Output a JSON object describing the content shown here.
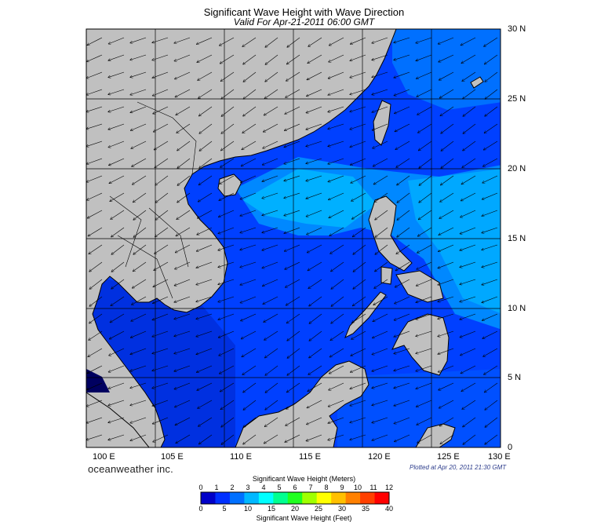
{
  "title": "Significant Wave Height with Wave Direction",
  "subtitle": "Valid For Apr-21-2011 06:00 GMT",
  "lat_labels": [
    "30 N",
    "25 N",
    "20 N",
    "15 N",
    "10 N",
    "5 N",
    "0"
  ],
  "lon_labels": [
    "100 E",
    "105 E",
    "110 E",
    "115 E",
    "120 E",
    "125 E",
    "130 E"
  ],
  "brand": "oceanweather inc.",
  "plotted": "Plotted at Apr 20, 2011 21:30 GMT",
  "colorbar": {
    "meters_title": "Significant Wave Height (Meters)",
    "feet_title": "Significant Wave Height (Feet)",
    "meters_ticks": [
      "0",
      "1",
      "2",
      "3",
      "4",
      "5",
      "6",
      "7",
      "8",
      "9",
      "10",
      "11",
      "12"
    ],
    "feet_ticks": [
      "0",
      "5",
      "10",
      "15",
      "20",
      "25",
      "30",
      "35",
      "40"
    ],
    "colors": [
      "#0000c8",
      "#0030ff",
      "#0070ff",
      "#00b8ff",
      "#00ffff",
      "#00ff90",
      "#20ff20",
      "#a0ff00",
      "#ffff00",
      "#ffc000",
      "#ff8000",
      "#ff4000",
      "#ff0000"
    ]
  },
  "map": {
    "land_color": "#c0c0c0",
    "grid_color": "#000000"
  }
}
